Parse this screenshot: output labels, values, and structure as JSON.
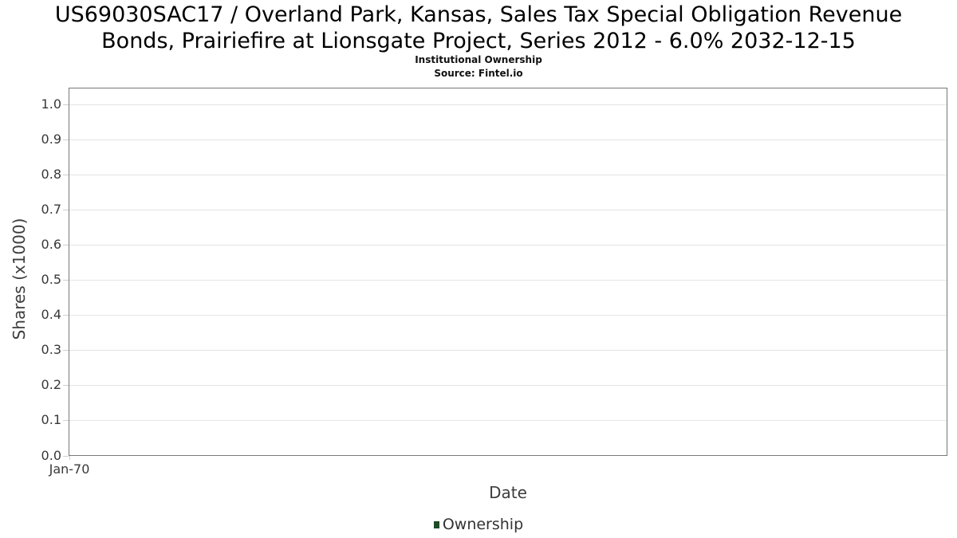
{
  "chart_data": {
    "type": "line",
    "title": "US69030SAC17 / Overland Park, Kansas, Sales Tax Special Obligation Revenue Bonds, Prairiefire at Lionsgate Project, Series 2012 - 6.0% 2032-12-15",
    "subtitle": "Institutional Ownership",
    "source": "Source: Fintel.io",
    "xlabel": "Date",
    "ylabel": "Shares (x1000)",
    "x_ticks": [
      "Jan-70"
    ],
    "y_ticks": [
      "0.0",
      "0.1",
      "0.2",
      "0.3",
      "0.4",
      "0.5",
      "0.6",
      "0.7",
      "0.8",
      "0.9",
      "1.0"
    ],
    "ylim": [
      0.0,
      1.05
    ],
    "grid": "horizontal",
    "legend_position": "bottom-center",
    "series": [
      {
        "name": "Ownership",
        "color": "#1e4a26",
        "x": [],
        "values": []
      }
    ]
  },
  "colors": {
    "background": "#ffffff",
    "plot_border": "#787878",
    "gridline": "#e4e4e4",
    "tick_mark": "#cfcfcf",
    "title_text": "#000000",
    "axis_text": "#383838",
    "legend_swatch": "#1e4a26"
  }
}
